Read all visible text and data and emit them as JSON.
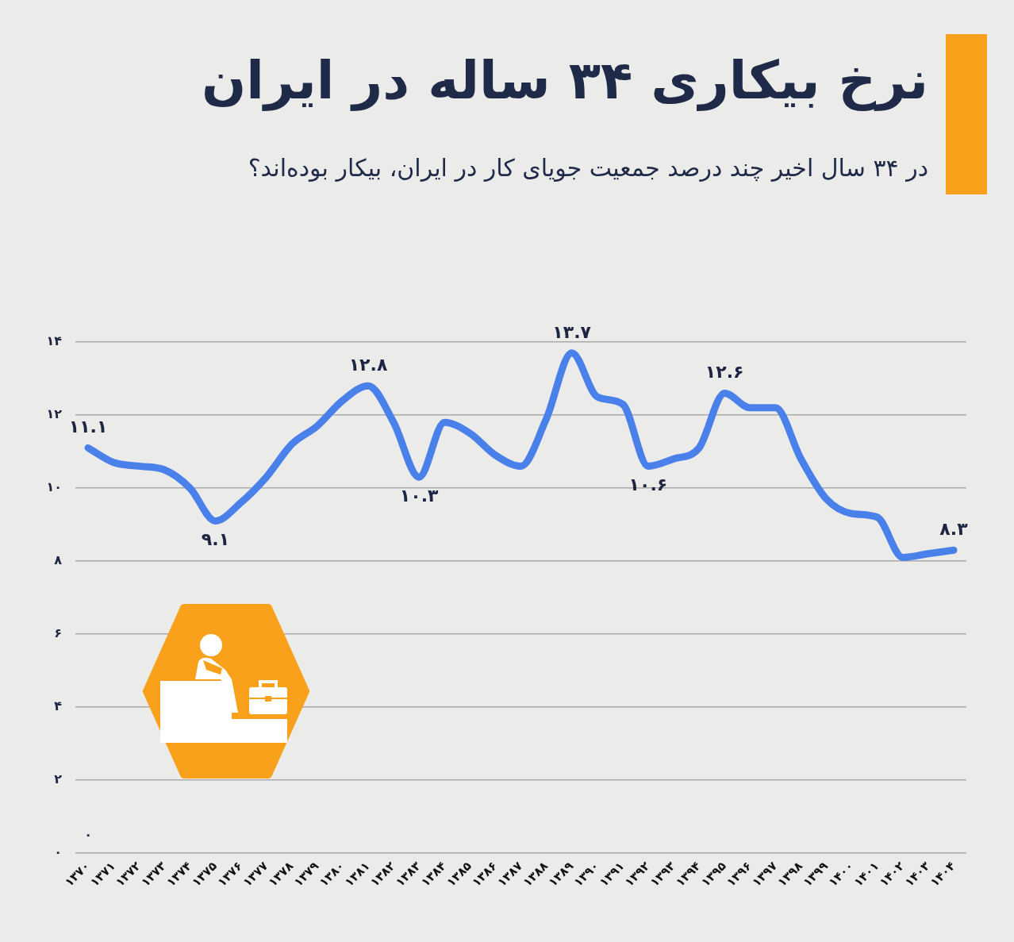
{
  "chart_data": {
    "type": "line",
    "title": "نرخ بیکاری ۳۴ ساله در ایران",
    "subtitle": "در ۳۴ سال اخیر چند درصد جمعیت جویای کار در ایران، بیکار بوده‌اند؟",
    "categories": [
      "۱۳۷۰",
      "۱۳۷۱",
      "۱۳۷۲",
      "۱۳۷۳",
      "۱۳۷۴",
      "۱۳۷۵",
      "۱۳۷۶",
      "۱۳۷۷",
      "۱۳۷۸",
      "۱۳۷۹",
      "۱۳۸۰",
      "۱۳۸۱",
      "۱۳۸۲",
      "۱۳۸۳",
      "۱۳۸۴",
      "۱۳۸۵",
      "۱۳۸۶",
      "۱۳۸۷",
      "۱۳۸۸",
      "۱۳۸۹",
      "۱۳۹۰",
      "۱۳۹۱",
      "۱۳۹۲",
      "۱۳۹۳",
      "۱۳۹۴",
      "۱۳۹۵",
      "۱۳۹۶",
      "۱۳۹۷",
      "۱۳۹۸",
      "۱۳۹۹",
      "۱۴۰۰",
      "۱۴۰۱",
      "۱۴۰۲",
      "۱۴۰۳",
      "۱۴۰۴"
    ],
    "values": [
      11.1,
      10.7,
      10.6,
      10.5,
      10.0,
      9.1,
      9.6,
      10.3,
      11.2,
      11.7,
      12.4,
      12.8,
      11.8,
      10.3,
      11.8,
      11.5,
      10.9,
      10.6,
      11.9,
      13.7,
      12.5,
      12.3,
      10.6,
      10.8,
      11.1,
      12.6,
      12.2,
      12.2,
      10.8,
      9.7,
      9.3,
      9.2,
      8.1,
      8.2,
      8.3
    ],
    "value_labels": [
      "۱۱.۱",
      null,
      null,
      null,
      null,
      "۹.۱",
      null,
      null,
      null,
      null,
      null,
      "۱۲.۸",
      null,
      "۱۰.۳",
      null,
      null,
      null,
      null,
      null,
      "۱۳.۷",
      null,
      null,
      "۱۰.۶",
      null,
      null,
      "۱۲.۶",
      null,
      null,
      null,
      null,
      null,
      null,
      null,
      null,
      "۸.۳"
    ],
    "color": "#4a80ea",
    "ylim": [
      0,
      14
    ],
    "yticks": [
      {
        "value": 0,
        "label": "۰"
      },
      {
        "value": 2,
        "label": "۲"
      },
      {
        "value": 4,
        "label": "۴"
      },
      {
        "value": 6,
        "label": "۶"
      },
      {
        "value": 8,
        "label": "۸"
      },
      {
        "value": 10,
        "label": "۱۰"
      },
      {
        "value": 12,
        "label": "۱۲"
      },
      {
        "value": 14,
        "label": "۱۴"
      }
    ],
    "grid": "y",
    "marker": "none",
    "line_style": "solid",
    "annotations": [
      "۰"
    ]
  }
}
